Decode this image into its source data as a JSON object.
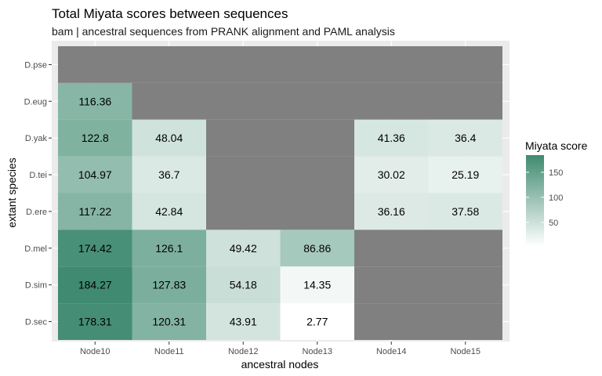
{
  "chart_data": {
    "type": "heatmap",
    "title": "Total Miyata scores between sequences",
    "subtitle": "bam | ancestral sequences from PRANK alignment and PAML analysis",
    "xlabel": "ancestral nodes",
    "ylabel": "extant species",
    "x_categories": [
      "Node10",
      "Node11",
      "Node12",
      "Node13",
      "Node14",
      "Node15"
    ],
    "y_categories": [
      "D.pse",
      "D.eug",
      "D.yak",
      "D.tei",
      "D.ere",
      "D.mel",
      "D.sim",
      "D.sec"
    ],
    "values": [
      [
        null,
        null,
        null,
        null,
        null,
        null
      ],
      [
        116.36,
        null,
        null,
        null,
        null,
        null
      ],
      [
        122.8,
        48.04,
        null,
        null,
        41.36,
        36.4
      ],
      [
        104.97,
        36.7,
        null,
        null,
        30.02,
        25.19
      ],
      [
        117.22,
        42.84,
        null,
        null,
        36.16,
        37.58
      ],
      [
        174.42,
        126.1,
        49.42,
        86.86,
        null,
        null
      ],
      [
        184.27,
        127.83,
        54.18,
        14.35,
        null,
        null
      ],
      [
        178.31,
        120.31,
        43.91,
        2.77,
        null,
        null
      ]
    ],
    "legend": {
      "title": "Miyata score",
      "ticks": [
        50,
        100,
        150
      ],
      "range": [
        2.77,
        184.27
      ],
      "low_color": "#ffffff",
      "high_color": "#3f8a70"
    },
    "na_color": "#808080",
    "panel_background": "#ebebeb",
    "grid": true
  }
}
